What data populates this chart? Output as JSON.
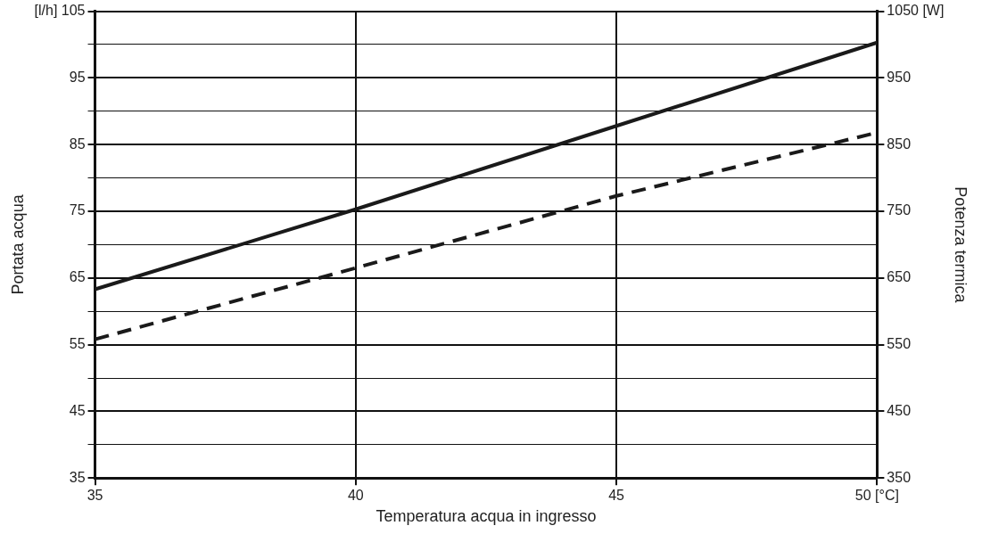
{
  "chart_data": {
    "type": "line",
    "xlabel": "Temperatura acqua in ingresso",
    "ylabel": "Portata acqua",
    "y2label": "Potenza termica",
    "x": [
      35,
      40,
      45,
      50
    ],
    "series": [
      {
        "color": "#1a1a1a",
        "line_style": "solid",
        "values": [
          63.3,
          75.3,
          87.8,
          100.3
        ]
      },
      {
        "color": "#1a1a1a",
        "line_style": "dashed",
        "values": [
          55.8,
          66.5,
          77.3,
          86.8
        ]
      }
    ],
    "xlim": [
      35,
      50
    ],
    "xticks": [
      35,
      40,
      45,
      {
        "value": 50,
        "label": "50 [°C]"
      }
    ],
    "ylim": [
      35,
      105
    ],
    "yticks": [
      35,
      {
        "value": 40,
        "label": null
      },
      45,
      {
        "value": 50,
        "label": null
      },
      55,
      {
        "value": 60,
        "label": null
      },
      65,
      {
        "value": 70,
        "label": null
      },
      75,
      {
        "value": 80,
        "label": null
      },
      85,
      {
        "value": 90,
        "label": null
      },
      95,
      {
        "value": 100,
        "label": null
      },
      {
        "value": 105,
        "label": "[l/h] 105"
      }
    ],
    "y2lim": [
      350,
      1050
    ],
    "y2ticks": [
      350,
      450,
      550,
      650,
      750,
      850,
      950,
      {
        "value": 1050,
        "label": "1050 [W]"
      }
    ],
    "grid": true,
    "marker": "none",
    "legend": false
  }
}
